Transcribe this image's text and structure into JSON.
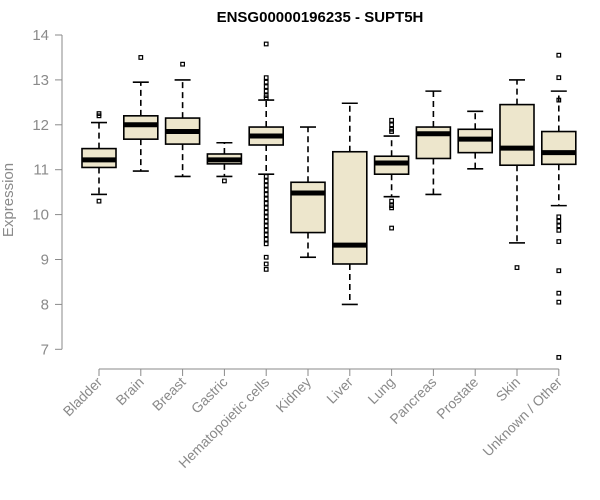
{
  "chart_data": {
    "type": "box",
    "title": "ENSG00000196235 - SUPT5H",
    "xlabel": "",
    "ylabel": "Expression",
    "ylim": [
      6.7,
      14
    ],
    "yticks": [
      7,
      8,
      9,
      10,
      11,
      12,
      13,
      14
    ],
    "grid": false,
    "colors": {
      "box_fill": "#ede6cc",
      "median": "#000000",
      "axis": "#8a8a8a"
    },
    "categories": [
      "Bladder",
      "Brain",
      "Breast",
      "Gastric",
      "Hematopoietic cells",
      "Kidney",
      "Liver",
      "Lung",
      "Pancreas",
      "Prostate",
      "Skin",
      "Unknown / Other"
    ],
    "boxes": [
      {
        "category": "Bladder",
        "whisker_low": 10.45,
        "q1": 11.05,
        "median": 11.22,
        "q3": 11.47,
        "whisker_high": 12.05,
        "outliers": [
          10.3,
          12.2,
          12.25
        ]
      },
      {
        "category": "Brain",
        "whisker_low": 10.97,
        "q1": 11.68,
        "median": 12.0,
        "q3": 12.2,
        "whisker_high": 12.95,
        "outliers": [
          13.5
        ]
      },
      {
        "category": "Breast",
        "whisker_low": 10.85,
        "q1": 11.57,
        "median": 11.85,
        "q3": 12.15,
        "whisker_high": 13.0,
        "outliers": [
          13.35
        ]
      },
      {
        "category": "Gastric",
        "whisker_low": 10.85,
        "q1": 11.13,
        "median": 11.22,
        "q3": 11.35,
        "whisker_high": 11.6,
        "outliers": [
          10.75
        ]
      },
      {
        "category": "Hematopoietic cells",
        "whisker_low": 10.9,
        "q1": 11.55,
        "median": 11.75,
        "q3": 11.95,
        "whisker_high": 12.55,
        "outliers": [
          13.8,
          13.05,
          12.95,
          12.85,
          12.75,
          12.65,
          12.6,
          10.85,
          10.75,
          10.65,
          10.55,
          10.45,
          10.35,
          10.25,
          10.15,
          10.05,
          9.95,
          9.85,
          9.75,
          9.65,
          9.55,
          9.45,
          9.35,
          9.05,
          8.9,
          8.78
        ]
      },
      {
        "category": "Kidney",
        "whisker_low": 9.05,
        "q1": 9.6,
        "median": 10.48,
        "q3": 10.72,
        "whisker_high": 11.95,
        "outliers": []
      },
      {
        "category": "Liver",
        "whisker_low": 8.0,
        "q1": 8.9,
        "median": 9.32,
        "q3": 11.4,
        "whisker_high": 12.48,
        "outliers": []
      },
      {
        "category": "Lung",
        "whisker_low": 10.4,
        "q1": 10.9,
        "median": 11.15,
        "q3": 11.3,
        "whisker_high": 11.75,
        "outliers": [
          12.1,
          12.0,
          11.9,
          11.85,
          10.3,
          10.2,
          10.15,
          9.7
        ]
      },
      {
        "category": "Pancreas",
        "whisker_low": 10.45,
        "q1": 11.25,
        "median": 11.8,
        "q3": 11.95,
        "whisker_high": 12.75,
        "outliers": []
      },
      {
        "category": "Prostate",
        "whisker_low": 11.02,
        "q1": 11.38,
        "median": 11.68,
        "q3": 11.9,
        "whisker_high": 12.3,
        "outliers": []
      },
      {
        "category": "Skin",
        "whisker_low": 9.37,
        "q1": 11.1,
        "median": 11.48,
        "q3": 12.45,
        "whisker_high": 13.0,
        "outliers": [
          8.82
        ]
      },
      {
        "category": "Unknown / Other",
        "whisker_low": 10.2,
        "q1": 11.12,
        "median": 11.38,
        "q3": 11.85,
        "whisker_high": 12.75,
        "outliers": [
          13.55,
          13.05,
          12.55,
          9.95,
          9.85,
          9.75,
          9.65,
          9.4,
          8.75,
          8.25,
          8.05,
          6.82
        ]
      }
    ]
  }
}
